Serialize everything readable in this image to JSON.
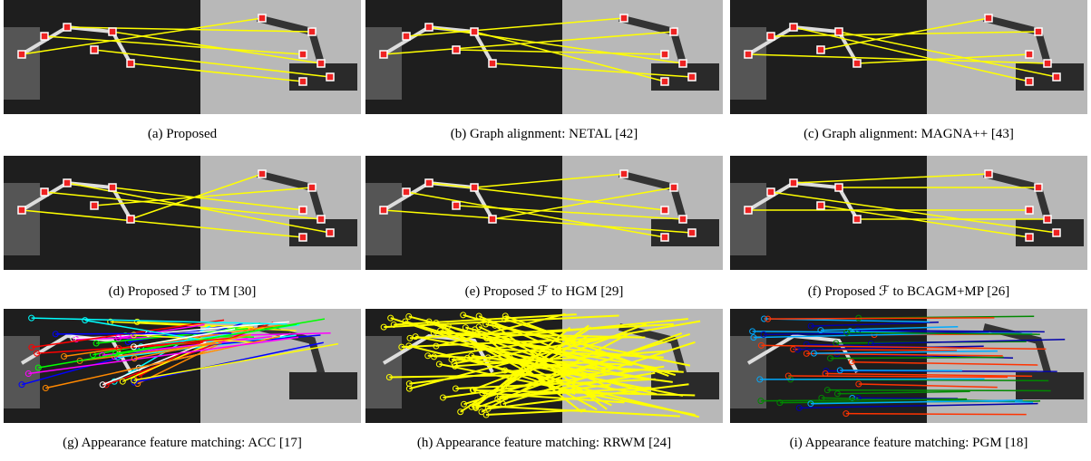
{
  "panels": [
    {
      "caption": "(a) Proposed"
    },
    {
      "caption": "(b) Graph alignment: NETAL [42]"
    },
    {
      "caption": "(c) Graph alignment: MAGNA++ [43]"
    },
    {
      "caption": "(d) Proposed ℱ to TM [30]"
    },
    {
      "caption": "(e) Proposed ℱ to HGM [29]"
    },
    {
      "caption": "(f) Proposed ℱ to BCAGM+MP [26]"
    },
    {
      "caption": "(g) Appearance feature matching: ACC [17]"
    },
    {
      "caption": "(h) Appearance feature matching: RRWM [24]"
    },
    {
      "caption": "(i) Appearance feature matching: PGM [18]"
    }
  ]
}
